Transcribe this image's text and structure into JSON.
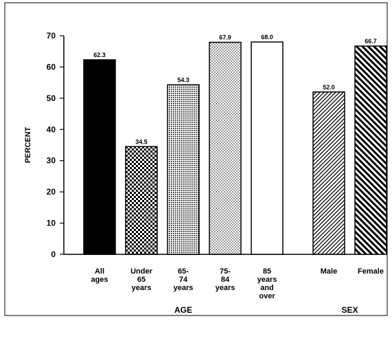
{
  "chart_data": {
    "type": "bar",
    "ylabel": "PERCENT",
    "ylim": [
      0,
      70
    ],
    "yticks": [
      "0",
      "10",
      "20",
      "30",
      "40",
      "50",
      "60",
      "70"
    ],
    "grid": false,
    "groups": [
      {
        "label": "AGE",
        "bars": [
          {
            "category": "All ages",
            "label_lines": [
              "All",
              "ages"
            ],
            "value": 62.3,
            "value_label": "62.3",
            "pattern": "solid"
          },
          {
            "category": "Under 65 years",
            "label_lines": [
              "Under",
              "65",
              "years"
            ],
            "value": 34.5,
            "value_label": "34.5",
            "pattern": "checker"
          },
          {
            "category": "65-74 years",
            "label_lines": [
              "65-",
              "74",
              "years"
            ],
            "value": 54.3,
            "value_label": "54.3",
            "pattern": "dense-dots"
          },
          {
            "category": "75-84 years",
            "label_lines": [
              "75-",
              "84",
              "years"
            ],
            "value": 67.9,
            "value_label": "67.9",
            "pattern": "light-dots"
          },
          {
            "category": "85 years and over",
            "label_lines": [
              "85",
              "years",
              "and",
              "over"
            ],
            "value": 68.0,
            "value_label": "68.0",
            "pattern": "white"
          }
        ]
      },
      {
        "label": "SEX",
        "bars": [
          {
            "category": "Male",
            "label_lines": [
              "Male"
            ],
            "value": 52.0,
            "value_label": "52.0",
            "pattern": "thin-diagonal"
          },
          {
            "category": "Female",
            "label_lines": [
              "Female"
            ],
            "value": 66.7,
            "value_label": "66.7",
            "pattern": "thick-diagonal"
          }
        ]
      }
    ]
  }
}
